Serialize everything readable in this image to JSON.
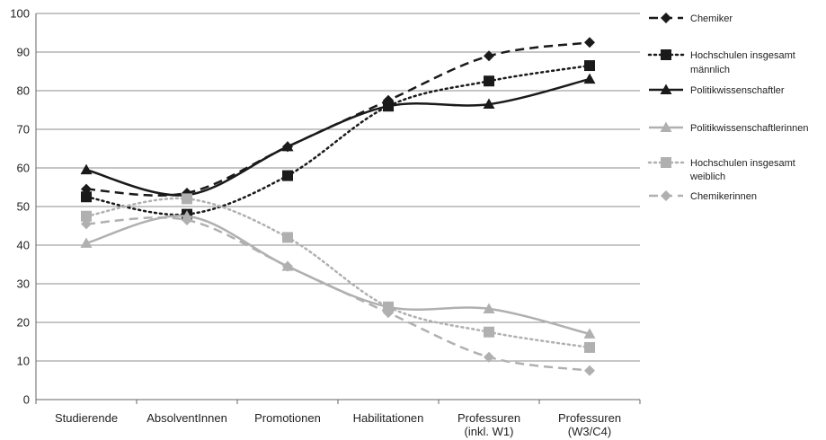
{
  "chart_data": {
    "type": "line",
    "title": "",
    "xlabel": "",
    "ylabel": "",
    "ylim": [
      0,
      100
    ],
    "yticks": [
      0,
      10,
      20,
      30,
      40,
      50,
      60,
      70,
      80,
      90,
      100
    ],
    "grid": "horizontal",
    "legend_position": "right",
    "categories": [
      [
        "Studierende"
      ],
      [
        "AbsolventInnen"
      ],
      [
        "Promotionen"
      ],
      [
        "Habilitationen"
      ],
      [
        "Professuren",
        "(inkl. W1)"
      ],
      [
        "Professuren",
        "(W3/C4)"
      ]
    ],
    "series": [
      {
        "name": "Chemiker",
        "values": [
          54.5,
          53.5,
          65.5,
          77.5,
          89,
          92.5
        ],
        "color": "#1a1a1a",
        "dash": "dashed",
        "marker": "diamond"
      },
      {
        "name": "Hochschulen insgesamt männlich",
        "name_lines": [
          "Hochschulen insgesamt",
          "männlich"
        ],
        "values": [
          52.5,
          48,
          58,
          76,
          82.5,
          86.5
        ],
        "color": "#1a1a1a",
        "dash": "dotted",
        "marker": "square"
      },
      {
        "name": "Politikwissenschaftler",
        "values": [
          59.5,
          53,
          65.5,
          76,
          76.5,
          83
        ],
        "color": "#1a1a1a",
        "dash": "solid",
        "marker": "triangle"
      },
      {
        "name": "Politikwissenschaftlerinnen",
        "name_lines": [
          "Politikwissenschaftlerinnen"
        ],
        "values": [
          40.5,
          47.5,
          34.5,
          24,
          23.5,
          17
        ],
        "color": "#b0b0b0",
        "dash": "solid",
        "marker": "triangle"
      },
      {
        "name": "Hochschulen insgesamt weiblich",
        "name_lines": [
          "Hochschulen insgesamt",
          "weiblich"
        ],
        "values": [
          47.5,
          52,
          42,
          24,
          17.5,
          13.5
        ],
        "color": "#b0b0b0",
        "dash": "dotted",
        "marker": "square"
      },
      {
        "name": "Chemikerinnen",
        "values": [
          45.5,
          46.5,
          34.5,
          22.5,
          11,
          7.5
        ],
        "color": "#b0b0b0",
        "dash": "dashed",
        "marker": "diamond"
      }
    ]
  }
}
